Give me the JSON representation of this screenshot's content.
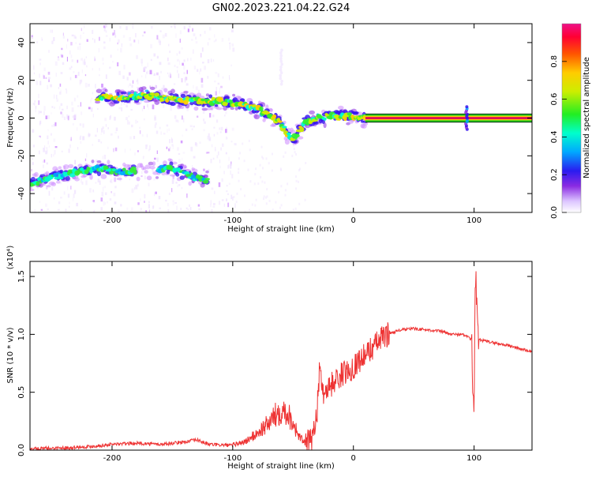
{
  "title": "GN02.2023.221.04.22.G24",
  "colors": {
    "snr_line": "#ee3333",
    "track_core": "#dd1155",
    "colormap": [
      "#ffffff",
      "#f0e4ff",
      "#cc88ff",
      "#8a2be2",
      "#3311ee",
      "#00aaff",
      "#00ffcc",
      "#33ee33",
      "#ccee00",
      "#ffcc00",
      "#ff6600",
      "#ff0033",
      "#ee1188"
    ]
  },
  "chart_data": [
    {
      "type": "heatmap",
      "name": "spectrogram",
      "xlabel": "Height of straight line (km)",
      "ylabel": "Frequency (Hz)",
      "xlim": [
        -268,
        148
      ],
      "ylim": [
        -50,
        50
      ],
      "x_ticks": [
        -200,
        -100,
        0,
        100
      ],
      "x_tick_labels": [
        "-200",
        "-100",
        "0",
        "100"
      ],
      "y_ticks": [
        -40,
        -20,
        0,
        20,
        40
      ],
      "y_tick_labels": [
        "-40",
        "-20",
        "0",
        "20",
        "40"
      ],
      "track_upper": [
        [
          -212,
          11
        ],
        [
          -190,
          11
        ],
        [
          -170,
          12
        ],
        [
          -150,
          10
        ],
        [
          -130,
          9
        ],
        [
          -110,
          9
        ],
        [
          -100,
          8
        ],
        [
          -90,
          7
        ],
        [
          -80,
          5
        ],
        [
          -70,
          2
        ],
        [
          -60,
          -3
        ],
        [
          -55,
          -8
        ],
        [
          -50,
          -11
        ],
        [
          -45,
          -7
        ],
        [
          -40,
          -2
        ],
        [
          -30,
          0
        ],
        [
          -20,
          1
        ],
        [
          -10,
          1
        ],
        [
          0,
          1
        ],
        [
          10,
          0
        ]
      ],
      "track_lower": [
        [
          -268,
          -35
        ],
        [
          -255,
          -32
        ],
        [
          -240,
          -30
        ],
        [
          -225,
          -28
        ],
        [
          -210,
          -27
        ],
        [
          -200,
          -28
        ],
        [
          -185,
          -28
        ],
        [
          -170,
          -28
        ],
        [
          -160,
          -27
        ],
        [
          -150,
          -26
        ],
        [
          -140,
          -30
        ],
        [
          -130,
          -32
        ],
        [
          -120,
          -33
        ]
      ],
      "line_segment": {
        "x": [
          10,
          148
        ],
        "y": 0
      },
      "colorbar": {
        "label": "Normalized spectral amplitude",
        "range": [
          0,
          1
        ],
        "ticks": [
          0.0,
          0.2,
          0.4,
          0.6,
          0.8
        ],
        "tick_labels": [
          "0.0",
          "0.2",
          "0.4",
          "0.6",
          "0.8"
        ]
      }
    },
    {
      "type": "line",
      "name": "snr",
      "xlabel": "Height of straight line (km)",
      "ylabel": "SNR (10 * v/v)",
      "scale_label": "(x10⁴)",
      "xlim": [
        -268,
        148
      ],
      "ylim": [
        0,
        1.63
      ],
      "x_ticks": [
        -200,
        -100,
        0,
        100
      ],
      "x_tick_labels": [
        "-200",
        "-100",
        "0",
        "100"
      ],
      "y_ticks": [
        0.0,
        0.5,
        1.0,
        1.5
      ],
      "y_tick_labels": [
        "0.0",
        "0.5",
        "1.0",
        "1.5"
      ],
      "series": [
        {
          "x": [
            -268,
            -240,
            -220,
            -200,
            -180,
            -160,
            -140,
            -130,
            -120,
            -100,
            -90,
            -80,
            -70,
            -65,
            -60,
            -55,
            -50,
            -45,
            -40,
            -35,
            -30,
            -28,
            -25,
            -20,
            -15,
            -10,
            -5,
            0,
            5,
            10,
            15,
            20,
            25,
            30,
            40,
            50,
            60,
            70,
            75,
            80,
            90,
            95,
            98,
            100,
            101,
            102,
            103,
            105,
            110,
            120,
            130,
            140,
            148
          ],
          "y": [
            0.01,
            0.02,
            0.03,
            0.05,
            0.06,
            0.05,
            0.07,
            0.09,
            0.05,
            0.04,
            0.06,
            0.12,
            0.2,
            0.25,
            0.3,
            0.28,
            0.2,
            0.1,
            0.05,
            0.08,
            0.35,
            0.7,
            0.5,
            0.55,
            0.6,
            0.65,
            0.68,
            0.72,
            0.78,
            0.82,
            0.88,
            0.93,
            0.98,
            1.01,
            1.04,
            1.05,
            1.04,
            1.03,
            1.02,
            1.0,
            1.0,
            0.98,
            0.95,
            0.1,
            1.6,
            1.2,
            0.96,
            0.95,
            0.94,
            0.92,
            0.9,
            0.87,
            0.85
          ]
        }
      ]
    }
  ]
}
